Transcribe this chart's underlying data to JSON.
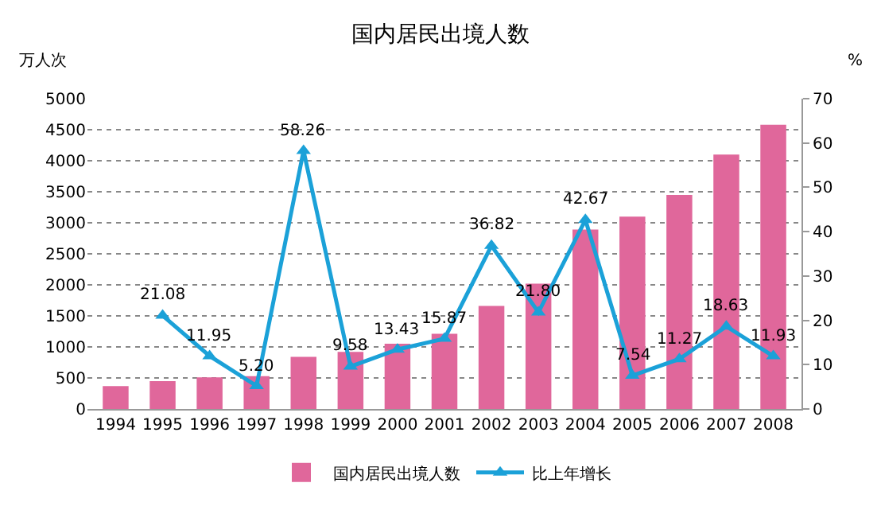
{
  "chart_data": {
    "type": "bar",
    "title": "国内居民出境人数",
    "ylabel": "万人次",
    "y2label": "%",
    "categories": [
      "1994",
      "1995",
      "1996",
      "1997",
      "1998",
      "1999",
      "2000",
      "2001",
      "2002",
      "2003",
      "2004",
      "2005",
      "2006",
      "2007",
      "2008"
    ],
    "series": [
      {
        "name": "国内居民出境人数",
        "color": "#e0679b",
        "values": [
          370,
          450,
          510,
          530,
          840,
          920,
          1050,
          1210,
          1660,
          2020,
          2890,
          3100,
          3450,
          4100,
          4580
        ]
      },
      {
        "name": "比上年增长",
        "type": "line",
        "axis": "y2",
        "color": "#1ba1d8",
        "marker": "triangle",
        "values": [
          null,
          21.08,
          11.95,
          5.2,
          58.26,
          9.58,
          13.43,
          15.87,
          36.82,
          21.8,
          42.67,
          7.54,
          11.27,
          18.63,
          11.93
        ],
        "value_labels": [
          null,
          "21.08",
          "11.95",
          "5.20",
          "58.26",
          "9.58",
          "13.43",
          "15.87",
          "36.82",
          "21.80",
          "42.67",
          "7.54",
          "11.27",
          "18.63",
          "11.93"
        ]
      }
    ],
    "ylim": [
      0,
      5000
    ],
    "yticks": [
      0,
      500,
      1000,
      1500,
      2000,
      2500,
      3000,
      3500,
      4000,
      4500,
      5000
    ],
    "y2lim": [
      0,
      70
    ],
    "y2ticks": [
      0,
      10,
      20,
      30,
      40,
      50,
      60,
      70
    ],
    "grid": "y",
    "legend": "bottom"
  }
}
